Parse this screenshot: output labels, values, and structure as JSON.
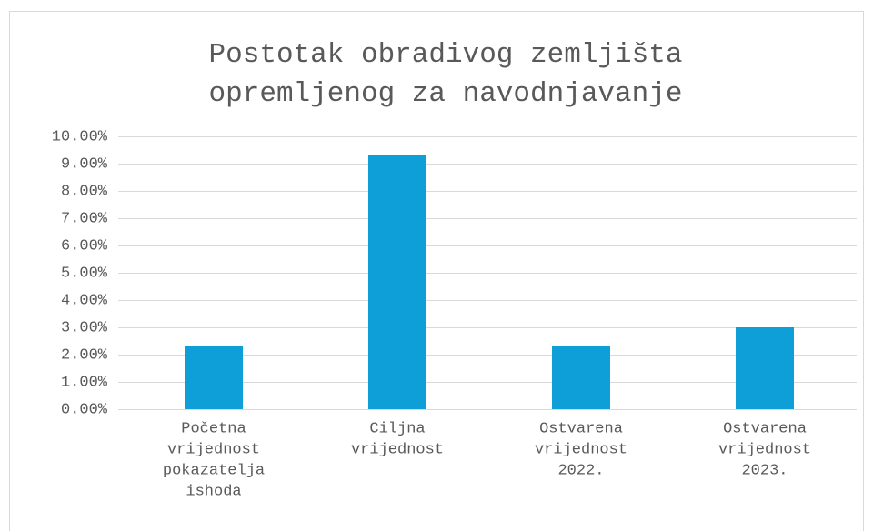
{
  "chart_data": {
    "type": "bar",
    "title": [
      "Postotak obradivog zemljišta",
      "opremljenog za navodnjavanje"
    ],
    "categories": [
      [
        "Početna",
        "vrijednost",
        "pokazatelja",
        "ishoda"
      ],
      [
        "Ciljna",
        "vrijednost"
      ],
      [
        "Ostvarena",
        "vrijednost",
        "2022."
      ],
      [
        "Ostvarena",
        "vrijednost",
        "2023."
      ]
    ],
    "values": [
      2.3,
      9.3,
      2.3,
      3.0
    ],
    "color": "#0f9fd8",
    "ylim": [
      0,
      10
    ],
    "yticks": [
      {
        "value": 0,
        "label": "0.00%"
      },
      {
        "value": 1,
        "label": "1.00%"
      },
      {
        "value": 2,
        "label": "2.00%"
      },
      {
        "value": 3,
        "label": "3.00%"
      },
      {
        "value": 4,
        "label": "4.00%"
      },
      {
        "value": 5,
        "label": "5.00%"
      },
      {
        "value": 6,
        "label": "6.00%"
      },
      {
        "value": 7,
        "label": "7.00%"
      },
      {
        "value": 8,
        "label": "8.00%"
      },
      {
        "value": 9,
        "label": "9.00%"
      },
      {
        "value": 10,
        "label": "10.00%"
      }
    ],
    "grid": true
  }
}
